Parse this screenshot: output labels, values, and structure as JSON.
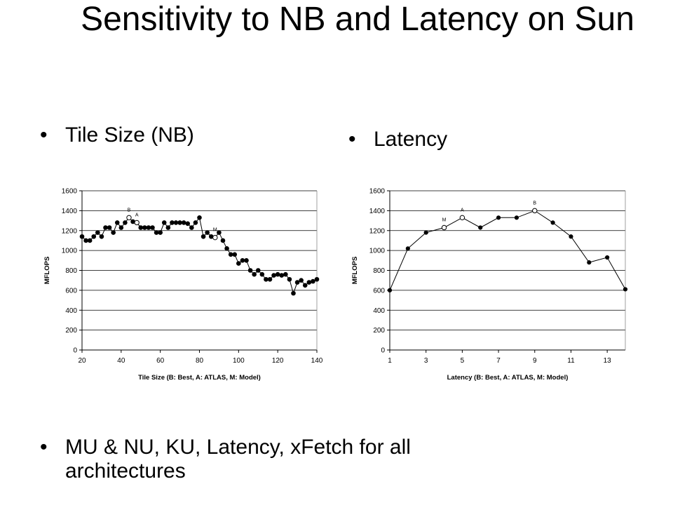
{
  "slide": {
    "title": "Sensitivity to NB and Latency on Sun",
    "bullet_dot": "•",
    "bullets": {
      "tile": "Tile Size (NB)",
      "latency": "Latency",
      "bottom": "MU & NU, KU, Latency, xFetch for all architectures"
    }
  },
  "chart_data": [
    {
      "type": "line",
      "xlabel": "Tile Size (B: Best, A: ATLAS, M: Model)",
      "ylabel": "MFLOPS",
      "xlim": [
        20,
        140
      ],
      "ylim": [
        0,
        1600
      ],
      "x_ticks": [
        20,
        40,
        60,
        80,
        100,
        120,
        140
      ],
      "y_ticks": [
        0,
        200,
        400,
        600,
        800,
        1000,
        1200,
        1400,
        1600
      ],
      "grid": "horizontal",
      "series": [
        {
          "x": [
            20,
            22,
            24,
            26,
            28,
            30,
            32,
            34,
            36,
            38,
            40,
            42,
            44,
            46,
            48,
            50,
            52,
            54,
            56,
            58,
            60,
            62,
            64,
            66,
            68,
            70,
            72,
            74,
            76,
            78,
            80,
            82,
            84,
            86,
            88,
            90,
            92,
            94,
            96,
            98,
            100,
            102,
            104,
            106,
            108,
            110,
            112,
            114,
            116,
            118,
            120,
            122,
            124,
            126,
            128,
            130,
            132,
            134,
            136,
            138,
            140
          ],
          "y": [
            1140,
            1100,
            1100,
            1140,
            1180,
            1140,
            1230,
            1230,
            1180,
            1280,
            1230,
            1280,
            1330,
            1290,
            1280,
            1230,
            1230,
            1230,
            1230,
            1180,
            1180,
            1280,
            1230,
            1280,
            1280,
            1280,
            1280,
            1270,
            1230,
            1280,
            1330,
            1140,
            1180,
            1140,
            1130,
            1180,
            1100,
            1020,
            960,
            960,
            870,
            900,
            900,
            800,
            760,
            800,
            760,
            710,
            710,
            750,
            760,
            750,
            760,
            710,
            570,
            680,
            700,
            650,
            680,
            690,
            710
          ]
        }
      ],
      "annotations": [
        {
          "label": "B",
          "x": 44,
          "y": 1330
        },
        {
          "label": "A",
          "x": 48,
          "y": 1280
        },
        {
          "label": "M",
          "x": 88,
          "y": 1130
        }
      ]
    },
    {
      "type": "line",
      "xlabel": "Latency (B: Best, A: ATLAS, M: Model)",
      "ylabel": "MFLOPS",
      "xlim": [
        1,
        14
      ],
      "ylim": [
        0,
        1600
      ],
      "x_ticks": [
        1,
        3,
        5,
        7,
        9,
        11,
        13
      ],
      "y_ticks": [
        0,
        200,
        400,
        600,
        800,
        1000,
        1200,
        1400,
        1600
      ],
      "grid": "horizontal",
      "series": [
        {
          "x": [
            1,
            2,
            3,
            4,
            5,
            6,
            7,
            8,
            9,
            10,
            11,
            12,
            13,
            14
          ],
          "y": [
            600,
            1020,
            1180,
            1230,
            1330,
            1230,
            1330,
            1330,
            1400,
            1280,
            1140,
            880,
            930,
            610
          ]
        }
      ],
      "annotations": [
        {
          "label": "M",
          "x": 4,
          "y": 1230
        },
        {
          "label": "A",
          "x": 5,
          "y": 1330
        },
        {
          "label": "B",
          "x": 9,
          "y": 1400
        }
      ]
    }
  ]
}
